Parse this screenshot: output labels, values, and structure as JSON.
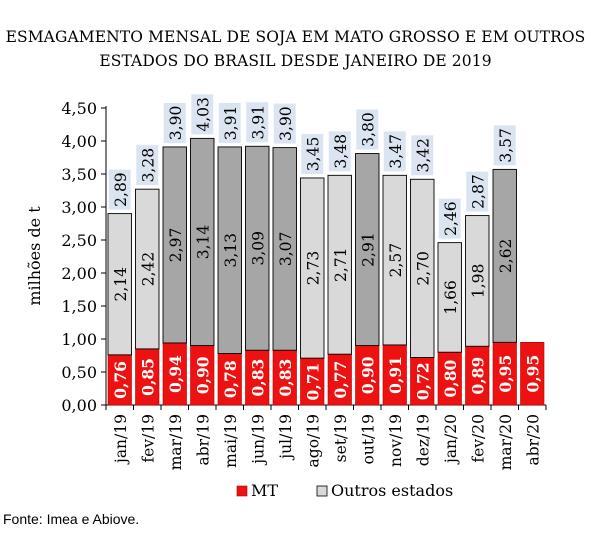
{
  "title_line1": "ESMAGAMENTO MENSAL DE SOJA EM MATO GROSSO E EM OUTROS",
  "title_line2": "ESTADOS DO BRASIL DESDE JANEIRO DE 2019",
  "source": "Fonte: Imea e Abiove.",
  "colors": {
    "mt": "#ee1111",
    "outros": "#d9d9d9",
    "outros_dark": "#a6a6a6",
    "total_box": "#dbe5f1"
  },
  "chart_data": {
    "type": "bar",
    "stacked": true,
    "categories": [
      "jan/19",
      "fev/19",
      "mar/19",
      "abr/19",
      "mai/19",
      "jun/19",
      "jul/19",
      "ago/19",
      "set/19",
      "out/19",
      "nov/19",
      "dez/19",
      "jan/20",
      "fev/20",
      "mar/20",
      "abr/20"
    ],
    "series": [
      {
        "name": "MT",
        "values": [
          0.76,
          0.85,
          0.94,
          0.9,
          0.78,
          0.83,
          0.83,
          0.71,
          0.77,
          0.9,
          0.91,
          0.72,
          0.8,
          0.89,
          0.95,
          0.95
        ],
        "labels": [
          "0,76",
          "0,85",
          "0,94",
          "0,90",
          "0,78",
          "0,83",
          "0,83",
          "0,71",
          "0,77",
          "0,90",
          "0,91",
          "0,72",
          "0,80",
          "0,89",
          "0,95",
          "0,95"
        ]
      },
      {
        "name": "Outros estados",
        "values": [
          2.14,
          2.42,
          2.97,
          3.14,
          3.13,
          3.09,
          3.07,
          2.73,
          2.71,
          2.91,
          2.57,
          2.7,
          1.66,
          1.98,
          2.62,
          null
        ],
        "labels": [
          "2,14",
          "2,42",
          "2,97",
          "3,14",
          "3,13",
          "3,09",
          "3,07",
          "2,73",
          "2,71",
          "2,91",
          "2,57",
          "2,70",
          "1,66",
          "1,98",
          "2,62",
          ""
        ],
        "dark": [
          false,
          false,
          true,
          true,
          true,
          true,
          true,
          false,
          false,
          true,
          false,
          false,
          false,
          false,
          true,
          false
        ]
      }
    ],
    "totals": [
      "2,89",
      "3,28",
      "3,90",
      "4,03",
      "3,91",
      "3,91",
      "3,90",
      "3,45",
      "3,48",
      "3,80",
      "3,47",
      "3,42",
      "2,46",
      "2,87",
      "3,57",
      ""
    ],
    "ylabel": "milhões de t",
    "ylim": [
      0,
      4.5
    ],
    "yticks": [
      "0,00",
      "0,50",
      "1,00",
      "1,50",
      "2,00",
      "2,50",
      "3,00",
      "3,50",
      "4,00",
      "4,50"
    ],
    "legend": [
      "MT",
      "Outros estados"
    ],
    "legend_position": "bottom"
  }
}
